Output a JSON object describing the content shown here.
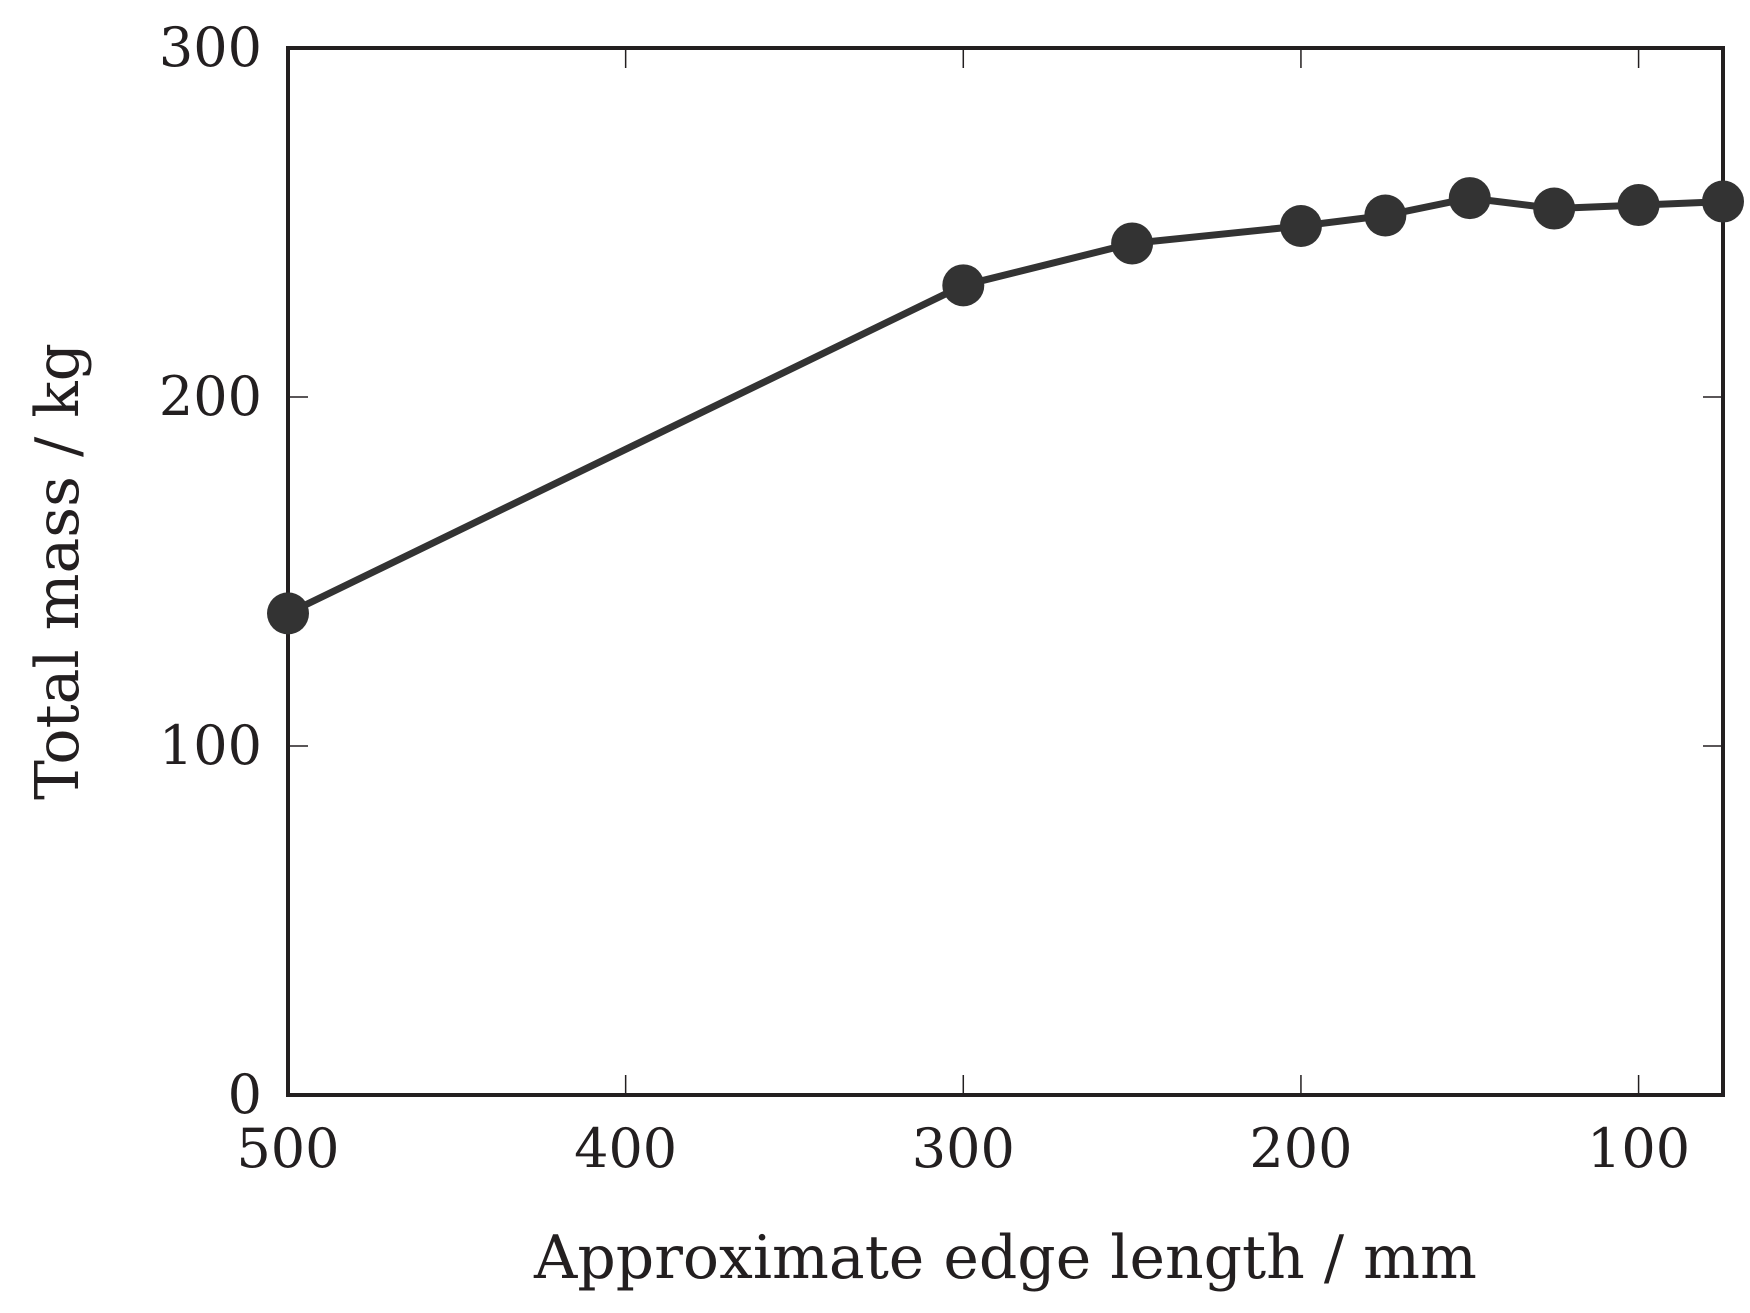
{
  "chart_data": {
    "type": "line",
    "title": "",
    "xlabel": "Approximate edge length / mm",
    "ylabel": "Total mass / kg",
    "x_reversed": true,
    "xlim": [
      500,
      75
    ],
    "ylim": [
      0,
      300
    ],
    "xticks": [
      500,
      400,
      300,
      200,
      100
    ],
    "yticks": [
      0,
      100,
      200,
      300
    ],
    "grid": false,
    "legend": "none",
    "series": [
      {
        "color": "#333333",
        "marker": "circle",
        "x": [
          500,
          300,
          250,
          200,
          175,
          150,
          125,
          100,
          75
        ],
        "y": [
          138,
          232,
          244,
          249,
          252,
          257,
          254,
          255,
          256
        ]
      }
    ]
  }
}
